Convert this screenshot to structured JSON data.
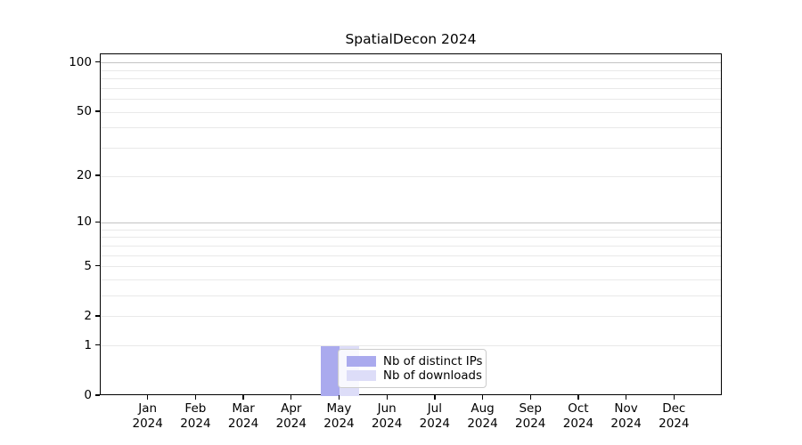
{
  "chart_data": {
    "type": "bar",
    "title": "SpatialDecon 2024",
    "x_tick_year": "2024",
    "categories": [
      "Jan",
      "Feb",
      "Mar",
      "Apr",
      "May",
      "Jun",
      "Jul",
      "Aug",
      "Sep",
      "Oct",
      "Nov",
      "Dec"
    ],
    "series": [
      {
        "name": "Nb of distinct IPs",
        "color": "#aaaaee",
        "values": [
          0,
          0,
          0,
          0,
          1,
          0,
          0,
          0,
          0,
          0,
          0,
          0
        ]
      },
      {
        "name": "Nb of downloads",
        "color": "#ddddf8",
        "values": [
          0,
          0,
          0,
          0,
          1,
          0,
          0,
          0,
          0,
          0,
          0,
          0
        ]
      }
    ],
    "y_axis": {
      "scale": "log1p",
      "tick_values": [
        0,
        1,
        2,
        5,
        10,
        20,
        50,
        100
      ],
      "tick_labels": [
        "0",
        "1",
        "2",
        "5",
        "10",
        "20",
        "50",
        "100"
      ],
      "minor_gridlines": [
        3,
        4,
        6,
        7,
        8,
        9,
        30,
        40,
        60,
        70,
        80,
        90
      ],
      "emphasized_gridlines": [
        10,
        100
      ],
      "range": [
        0,
        113
      ]
    },
    "legend": {
      "position": "bottom-center",
      "entries": [
        "Nb of distinct IPs",
        "Nb of downloads"
      ]
    },
    "grid": "horizontal"
  },
  "colors": {
    "background": "#ffffff",
    "spine": "#000000",
    "gridline_light": "#e9e9e9",
    "gridline_dark": "#c3c3c3",
    "legend_border": "#cccccc",
    "text": "#111111"
  }
}
